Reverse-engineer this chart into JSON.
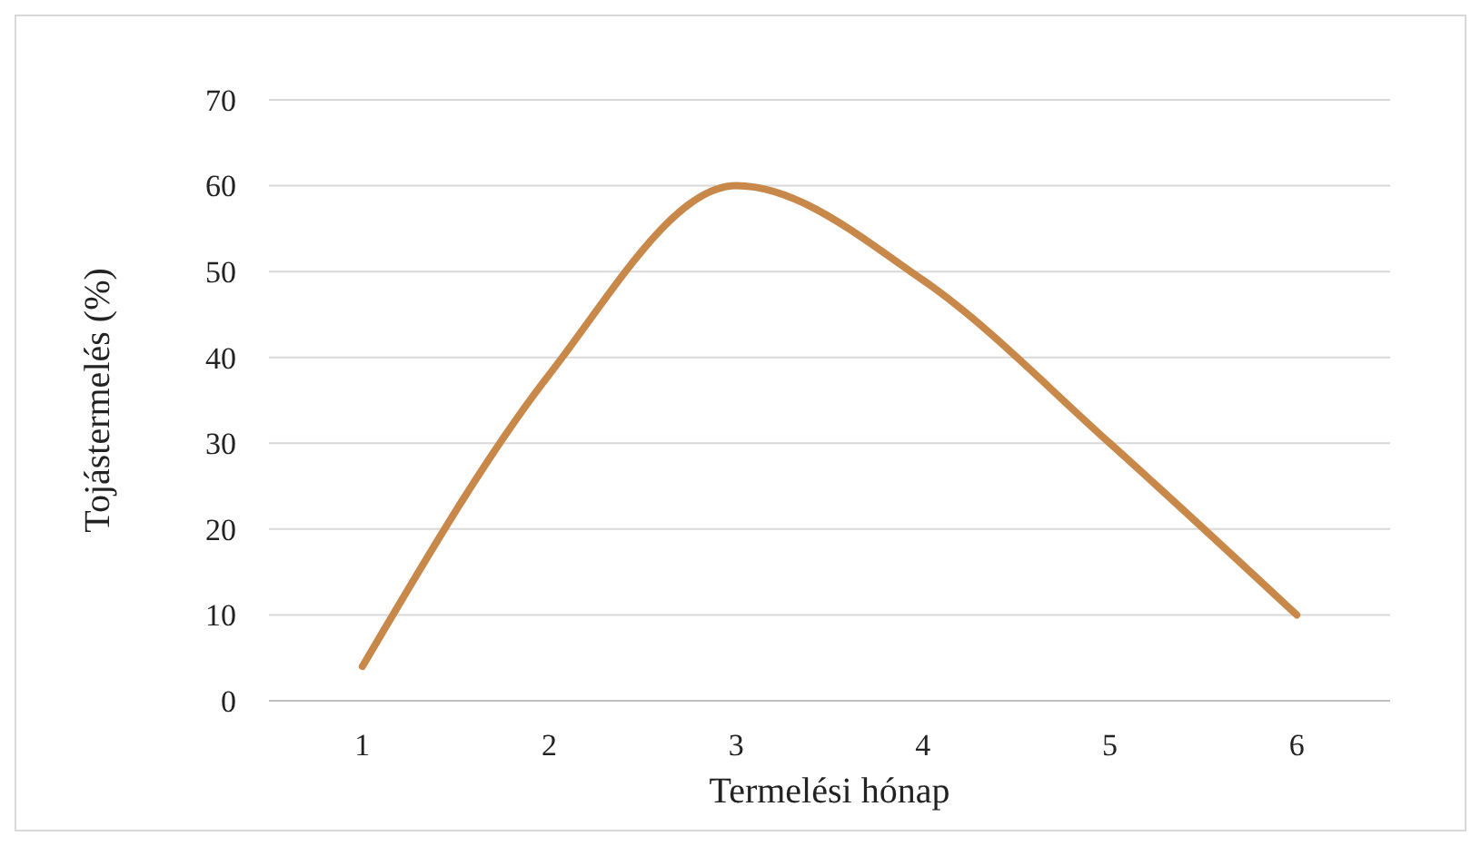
{
  "chart_data": {
    "type": "line",
    "xlabel": "Termelési hónap",
    "ylabel": "Tojástermelés (%)",
    "categories": [
      "1",
      "2",
      "3",
      "4",
      "5",
      "6"
    ],
    "series": [
      {
        "color": "#c8884a",
        "values": [
          4,
          38,
          60,
          49,
          30,
          10
        ]
      }
    ],
    "ylim": [
      0,
      70
    ],
    "yticks": [
      0,
      10,
      20,
      30,
      40,
      50,
      60,
      70
    ],
    "grid": "y",
    "marker": "none",
    "line_style": "solid"
  }
}
